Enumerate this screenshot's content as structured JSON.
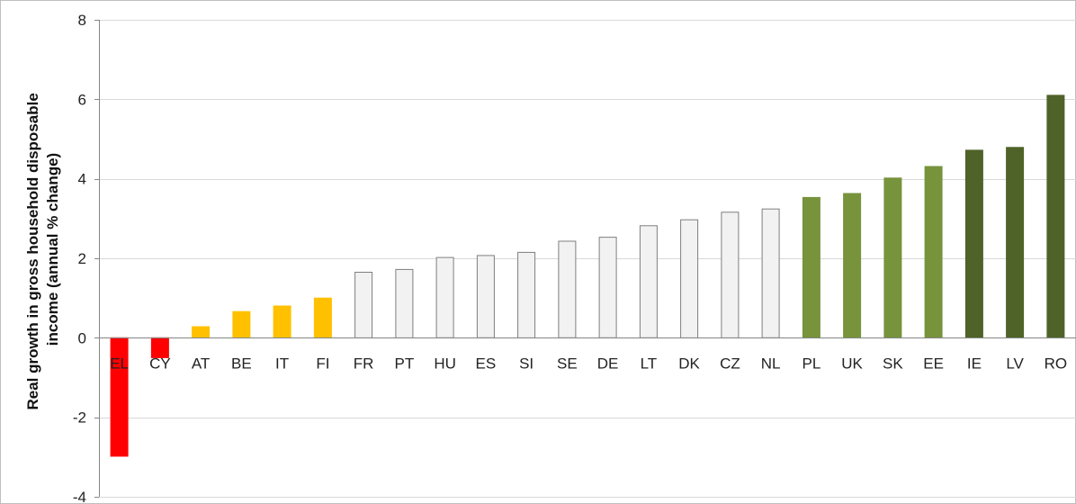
{
  "chart_data": {
    "type": "bar",
    "title": "",
    "xlabel": "",
    "ylabel": "Real growth in gross household disposable income (annual % change)",
    "ylabel_lines": [
      "Real growth in gross household disposable",
      "income (annual % change)"
    ],
    "ylim": [
      -4,
      8
    ],
    "yticks": [
      -4,
      -2,
      0,
      2,
      4,
      6,
      8
    ],
    "grid": true,
    "legend": "none",
    "categories": [
      "EL",
      "CY",
      "AT",
      "BE",
      "IT",
      "FI",
      "FR",
      "PT",
      "HU",
      "ES",
      "SI",
      "SE",
      "DE",
      "LT",
      "DK",
      "CZ",
      "NL",
      "PL",
      "UK",
      "SK",
      "EE",
      "IE",
      "LV",
      "RO"
    ],
    "values": [
      -2.98,
      -0.5,
      0.28,
      0.66,
      0.8,
      1.0,
      1.65,
      1.72,
      2.02,
      2.07,
      2.15,
      2.43,
      2.53,
      2.82,
      2.97,
      3.16,
      3.24,
      3.53,
      3.63,
      4.02,
      4.31,
      4.72,
      4.79,
      6.1
    ],
    "bar_colors": [
      "#ff0000",
      "#ff0000",
      "#ffc000",
      "#ffc000",
      "#ffc000",
      "#ffc000",
      "#f2f2f2",
      "#f2f2f2",
      "#f2f2f2",
      "#f2f2f2",
      "#f2f2f2",
      "#f2f2f2",
      "#f2f2f2",
      "#f2f2f2",
      "#f2f2f2",
      "#f2f2f2",
      "#f2f2f2",
      "#77933c",
      "#77933c",
      "#77933c",
      "#77933c",
      "#4f6228",
      "#4f6228",
      "#4f6228"
    ],
    "bar_outline_colors": [
      "#ff0000",
      "#ff0000",
      "#ffc000",
      "#ffc000",
      "#ffc000",
      "#ffc000",
      "#7f7f7f",
      "#7f7f7f",
      "#7f7f7f",
      "#7f7f7f",
      "#7f7f7f",
      "#7f7f7f",
      "#7f7f7f",
      "#7f7f7f",
      "#7f7f7f",
      "#7f7f7f",
      "#7f7f7f",
      "#77933c",
      "#77933c",
      "#77933c",
      "#77933c",
      "#4f6228",
      "#4f6228",
      "#4f6228"
    ],
    "gridline_color": "#d9d9d9",
    "axis_color": "#868686"
  }
}
